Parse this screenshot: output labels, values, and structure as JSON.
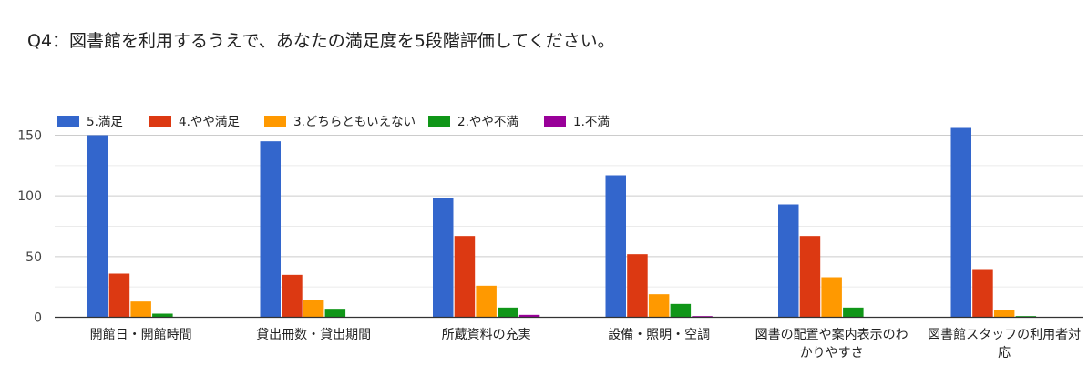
{
  "chart_data": {
    "type": "bar",
    "title": "Q4：図書館を利用するうえで、あなたの満足度を5段階評価してください。",
    "xlabel": "",
    "ylabel": "",
    "ylim": [
      0,
      160
    ],
    "yticks": [
      0,
      50,
      100,
      150
    ],
    "grid": true,
    "legend_position": "top-left",
    "categories": [
      [
        "開館日・開館時間"
      ],
      [
        "貸出冊数・貸出期間"
      ],
      [
        "所蔵資料の充実"
      ],
      [
        "設備・照明・空調"
      ],
      [
        "図書の配置や案内表示のわ",
        "かりやすさ"
      ],
      [
        "図書館スタッフの利用者対",
        "応"
      ]
    ],
    "series": [
      {
        "name": "5.満足",
        "color": "#3366cc",
        "values": [
          150,
          145,
          98,
          117,
          93,
          156
        ]
      },
      {
        "name": "4.やや満足",
        "color": "#dc3912",
        "values": [
          36,
          35,
          67,
          52,
          67,
          39
        ]
      },
      {
        "name": "3.どちらともいえない",
        "color": "#ff9900",
        "values": [
          13,
          14,
          26,
          19,
          33,
          6
        ]
      },
      {
        "name": "2.やや不満",
        "color": "#109618",
        "values": [
          3,
          7,
          8,
          11,
          8,
          1
        ]
      },
      {
        "name": "1.不満",
        "color": "#990099",
        "values": [
          0,
          0,
          2,
          1,
          0,
          0
        ]
      }
    ]
  }
}
